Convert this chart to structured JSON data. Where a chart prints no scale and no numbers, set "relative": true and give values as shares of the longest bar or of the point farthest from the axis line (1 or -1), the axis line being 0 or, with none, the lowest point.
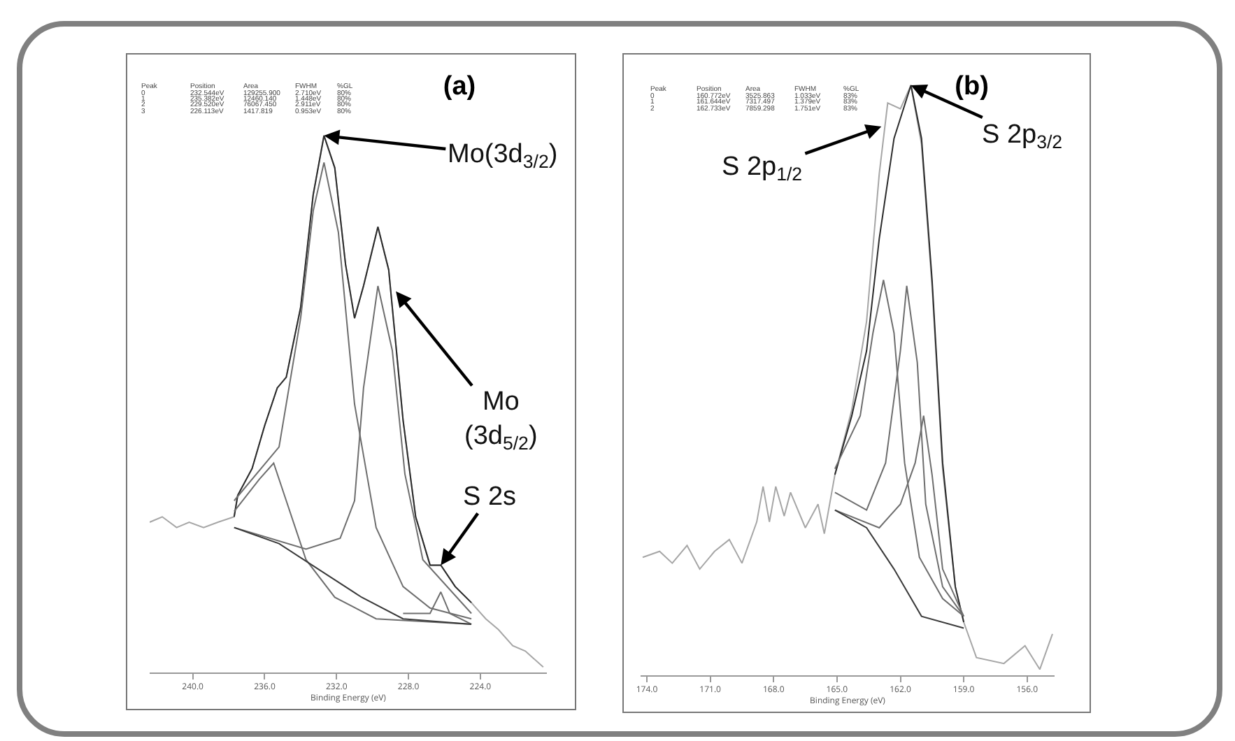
{
  "chart_data": [
    {
      "type": "line",
      "title": "(a)",
      "xlabel": "Binding Energy (eV)",
      "relative": true,
      "xlim": [
        242.4,
        220.3
      ],
      "xticks": [
        {
          "value": 240,
          "label": "240.0"
        },
        {
          "value": 236,
          "label": "236.0"
        },
        {
          "value": 232,
          "label": "232.0"
        },
        {
          "value": 228,
          "label": "228.0"
        },
        {
          "value": 224,
          "label": "224.0"
        }
      ],
      "annotations": [
        "Peak",
        "Position",
        "Area",
        "FWHM",
        "%GL",
        "0",
        "232.544eV",
        "129255.900",
        "2.710eV",
        "80%",
        "1",
        "235.382eV",
        "12460.140",
        "1.448eV",
        "80%",
        "2",
        "229.520eV",
        "76067.450",
        "2.911eV",
        "80%",
        "3",
        "226.113eV",
        "1417.819",
        "0.953eV",
        "80%",
        {
          "text": "Mo(3d$_{3/2}$)",
          "x": 232.7,
          "y": 1.0
        },
        {
          "text": "Mo\n(3d$_{5/2}$)",
          "x": 228.7,
          "y": 0.71
        },
        {
          "text": "S 2s",
          "x": 226.2,
          "y": 0.2
        }
      ],
      "series": [
        {
          "color": "#a6a6a6",
          "x": [
            242.4,
            241.7,
            240.9,
            240.2,
            239.4,
            238.6,
            237.7,
            237.5,
            236.7,
            236.0,
            235.3,
            234.8,
            234.0,
            233.3,
            232.7,
            232.1,
            231.5,
            231.0,
            230.5,
            229.7,
            229.1,
            228.3,
            227.6,
            226.8,
            226.2,
            225.4,
            224.5,
            223.7,
            223.0,
            222.2,
            221.5,
            220.5
          ],
          "values": [
            0.28,
            0.29,
            0.27,
            0.28,
            0.27,
            0.28,
            0.29,
            0.33,
            0.38,
            0.46,
            0.53,
            0.55,
            0.68,
            0.89,
            1.0,
            0.94,
            0.76,
            0.66,
            0.72,
            0.83,
            0.75,
            0.47,
            0.29,
            0.2,
            0.2,
            0.16,
            0.13,
            0.1,
            0.08,
            0.05,
            0.04,
            0.01
          ]
        },
        {
          "color": "#2b2b2b",
          "x": [
            237.7,
            237.5,
            236.7,
            236.0,
            235.3,
            234.8,
            234.0,
            233.3,
            232.7,
            232.1,
            231.5,
            231.0,
            230.5,
            229.7,
            229.1,
            228.3,
            227.6,
            226.8,
            226.2,
            225.4,
            224.5
          ],
          "values": [
            0.29,
            0.33,
            0.38,
            0.46,
            0.53,
            0.55,
            0.68,
            0.89,
            1.0,
            0.94,
            0.76,
            0.66,
            0.72,
            0.83,
            0.75,
            0.47,
            0.29,
            0.2,
            0.2,
            0.16,
            0.13
          ]
        },
        {
          "color": "#6e6e6e",
          "x": [
            237.7,
            235.2,
            234.0,
            233.3,
            232.7,
            231.9,
            231.0,
            229.8,
            228.3,
            226.8,
            224.5
          ],
          "values": [
            0.32,
            0.42,
            0.66,
            0.86,
            0.95,
            0.82,
            0.5,
            0.27,
            0.16,
            0.12,
            0.1
          ]
        },
        {
          "color": "#6e6e6e",
          "x": [
            237.7,
            236.3,
            235.5,
            234.8,
            233.7,
            232.1,
            229.8,
            224.5
          ],
          "values": [
            0.3,
            0.36,
            0.39,
            0.32,
            0.21,
            0.14,
            0.1,
            0.09
          ]
        },
        {
          "color": "#6e6e6e",
          "x": [
            237.7,
            233.7,
            231.8,
            231.0,
            230.5,
            229.7,
            228.9,
            228.2,
            227.2,
            224.5
          ],
          "values": [
            0.27,
            0.23,
            0.25,
            0.32,
            0.53,
            0.72,
            0.6,
            0.37,
            0.21,
            0.11
          ]
        },
        {
          "color": "#6e6e6e",
          "x": [
            228.3,
            226.8,
            226.2,
            225.7,
            224.5
          ],
          "values": [
            0.11,
            0.11,
            0.15,
            0.11,
            0.09
          ]
        },
        {
          "color": "#3a3a3a",
          "x": [
            237.7,
            235.2,
            232.9,
            230.6,
            228.3,
            224.5
          ],
          "values": [
            0.27,
            0.24,
            0.19,
            0.14,
            0.1,
            0.09
          ]
        }
      ]
    },
    {
      "type": "line",
      "title": "(b)",
      "xlabel": "Binding Energy (eV)",
      "relative": true,
      "xlim": [
        174.3,
        154.7
      ],
      "xticks": [
        {
          "value": 174,
          "label": "174.0"
        },
        {
          "value": 171,
          "label": "171.0"
        },
        {
          "value": 168,
          "label": "168.0"
        },
        {
          "value": 165,
          "label": "165.0"
        },
        {
          "value": 162,
          "label": "162.0"
        },
        {
          "value": 159,
          "label": "159.0"
        },
        {
          "value": 156,
          "label": "156.0"
        }
      ],
      "annotations": [
        "Peak",
        "Position",
        "Area",
        "FWHM",
        "%GL",
        "0",
        "160.772eV",
        "3525.863",
        "1.033eV",
        "83%",
        "1",
        "161.644eV",
        "7317.497",
        "1.379eV",
        "83%",
        "2",
        "162.733eV",
        "7859.298",
        "1.751eV",
        "83%",
        {
          "text": "S 2p$_{1/2}$",
          "x": 162.9,
          "y": 0.93
        },
        {
          "text": "S 2p$_{3/2}$",
          "x": 161.5,
          "y": 1.0
        }
      ],
      "series": [
        {
          "color": "#a6a6a6",
          "x": [
            174.2,
            173.4,
            172.8,
            172.1,
            171.5,
            170.8,
            170.1,
            169.5,
            168.8,
            168.5,
            168.2,
            167.9,
            167.5,
            167.2,
            166.5,
            165.9,
            165.6,
            165.1,
            164.3,
            163.6,
            163.0,
            162.6,
            162.0,
            161.5,
            161.0,
            160.5,
            160.0,
            159.4,
            159.0,
            158.9,
            158.4,
            157.1,
            156.1,
            155.4,
            154.8
          ],
          "values": [
            0.2,
            0.21,
            0.19,
            0.22,
            0.18,
            0.21,
            0.23,
            0.19,
            0.26,
            0.32,
            0.26,
            0.32,
            0.27,
            0.31,
            0.25,
            0.29,
            0.24,
            0.34,
            0.45,
            0.6,
            0.85,
            0.97,
            0.96,
            1.0,
            0.9,
            0.66,
            0.35,
            0.15,
            0.09,
            0.08,
            0.03,
            0.02,
            0.05,
            0.01,
            0.07
          ]
        },
        {
          "color": "#2b2b2b",
          "x": [
            165.1,
            164.3,
            163.6,
            163.0,
            162.3,
            161.5,
            161.0,
            160.5,
            160.0,
            159.4,
            159.0
          ],
          "values": [
            0.34,
            0.44,
            0.55,
            0.74,
            0.91,
            1.0,
            0.91,
            0.67,
            0.36,
            0.15,
            0.09
          ]
        },
        {
          "color": "#6e6e6e",
          "x": [
            165.1,
            163.0,
            162.0,
            161.3,
            160.9,
            160.5,
            160.0,
            159.0
          ],
          "values": [
            0.28,
            0.25,
            0.29,
            0.36,
            0.44,
            0.34,
            0.18,
            0.1
          ]
        },
        {
          "color": "#6e6e6e",
          "x": [
            165.1,
            163.6,
            162.7,
            162.0,
            161.7,
            161.2,
            160.8,
            160.0,
            159.0
          ],
          "values": [
            0.31,
            0.28,
            0.36,
            0.55,
            0.66,
            0.53,
            0.29,
            0.15,
            0.1
          ]
        },
        {
          "color": "#6e6e6e",
          "x": [
            165.1,
            163.9,
            163.3,
            162.8,
            162.3,
            161.8,
            161.1,
            160.0,
            159.0
          ],
          "values": [
            0.35,
            0.44,
            0.58,
            0.67,
            0.58,
            0.36,
            0.2,
            0.13,
            0.1
          ]
        },
        {
          "color": "#3a3a3a",
          "x": [
            165.1,
            163.6,
            162.3,
            161.0,
            159.0
          ],
          "values": [
            0.28,
            0.25,
            0.18,
            0.1,
            0.08
          ]
        }
      ]
    }
  ]
}
